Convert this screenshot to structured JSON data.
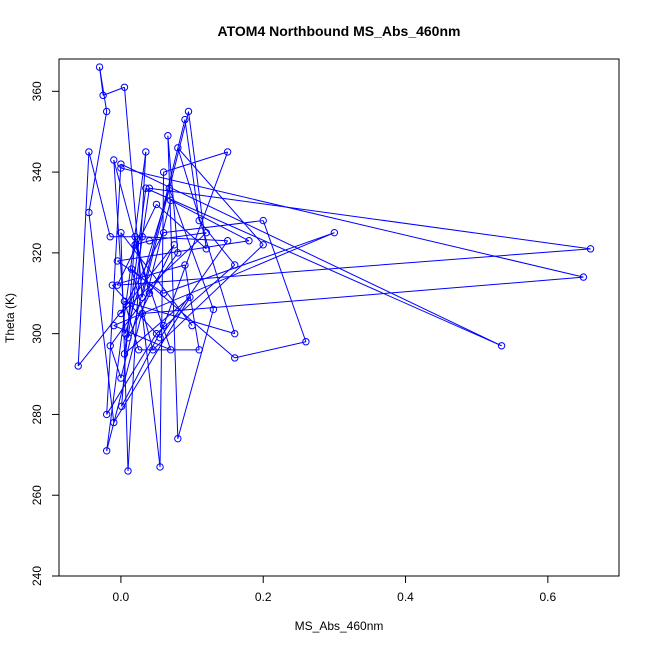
{
  "chart_data": {
    "type": "line",
    "title": "ATOM4 Northbound MS_Abs_460nm",
    "xlabel": "MS_Abs_460nm",
    "ylabel": "Theta (K)",
    "xlim": [
      -0.087,
      0.7
    ],
    "ylim": [
      240,
      368
    ],
    "xticks": [
      0.0,
      0.2,
      0.4,
      0.6
    ],
    "xtick_labels": [
      "0.0",
      "0.2",
      "0.4",
      "0.6"
    ],
    "yticks": [
      240,
      260,
      280,
      300,
      320,
      340,
      360
    ],
    "ytick_labels": [
      "240",
      "260",
      "280",
      "300",
      "320",
      "340",
      "360"
    ],
    "grid": false,
    "legend": "none",
    "series": [
      {
        "color": "#0000ff",
        "marker": "circle-open",
        "line": true,
        "points": [
          [
            0.0,
            341.0
          ],
          [
            0.65,
            314.0
          ],
          [
            0.03,
            305.0
          ],
          [
            0.055,
            267.0
          ],
          [
            0.06,
            340.0
          ],
          [
            0.15,
            345.0
          ],
          [
            0.06,
            302.0
          ],
          [
            0.001,
            282.0
          ],
          [
            0.02,
            324.0
          ],
          [
            0.04,
            310.0
          ],
          [
            -0.01,
            343.0
          ],
          [
            0.006,
            300.0
          ],
          [
            0.068,
            336.0
          ],
          [
            0.13,
            306.0
          ],
          [
            0.08,
            274.0
          ],
          [
            0.066,
            349.0
          ],
          [
            0.08,
            320.0
          ],
          [
            -0.015,
            297.0
          ],
          [
            0.0,
            289.0
          ],
          [
            0.09,
            353.0
          ],
          [
            0.11,
            328.0
          ],
          [
            0.16,
            317.0
          ],
          [
            0.05,
            300.0
          ],
          [
            -0.02,
            280.0
          ],
          [
            0.0,
            342.0
          ],
          [
            0.535,
            297.0
          ],
          [
            0.035,
            336.0
          ],
          [
            0.005,
            295.0
          ],
          [
            0.097,
            309.0
          ],
          [
            -0.01,
            278.0
          ],
          [
            -0.045,
            330.0
          ],
          [
            -0.02,
            355.0
          ],
          [
            -0.03,
            366.0
          ],
          [
            -0.025,
            359.0
          ],
          [
            0.005,
            361.0
          ],
          [
            0.03,
            309.0
          ],
          [
            0.095,
            355.0
          ],
          [
            0.12,
            321.0
          ],
          [
            0.05,
            332.0
          ],
          [
            -0.005,
            312.0
          ],
          [
            0.66,
            321.0
          ],
          [
            0.04,
            336.0
          ],
          [
            0.01,
            299.0
          ],
          [
            0.075,
            322.0
          ],
          [
            -0.06,
            292.0
          ],
          [
            -0.045,
            345.0
          ],
          [
            -0.015,
            324.0
          ],
          [
            0.03,
            324.0
          ],
          [
            0.15,
            323.0
          ],
          [
            0.055,
            299.0
          ],
          [
            -0.012,
            312.0
          ],
          [
            0.09,
            317.0
          ],
          [
            0.11,
            296.0
          ],
          [
            0.025,
            296.0
          ],
          [
            0.005,
            308.0
          ],
          [
            0.16,
            300.0
          ],
          [
            0.08,
            346.0
          ],
          [
            0.2,
            322.0
          ],
          [
            0.045,
            296.0
          ],
          [
            0.015,
            316.0
          ],
          [
            0.16,
            294.0
          ],
          [
            0.26,
            298.0
          ],
          [
            0.2,
            328.0
          ],
          [
            0.06,
            325.0
          ],
          [
            0.0,
            305.0
          ],
          [
            0.12,
            325.0
          ],
          [
            0.04,
            323.0
          ],
          [
            0.02,
            322.0
          ],
          [
            0.07,
            296.0
          ],
          [
            -0.01,
            302.0
          ],
          [
            0.3,
            325.0
          ],
          [
            0.06,
            310.0
          ],
          [
            -0.005,
            318.0
          ],
          [
            0.18,
            323.0
          ],
          [
            0.07,
            333.0
          ],
          [
            -0.02,
            271.0
          ],
          [
            0.035,
            345.0
          ],
          [
            0.01,
            266.0
          ],
          [
            0.0,
            325.0
          ],
          [
            0.1,
            302.0
          ]
        ]
      }
    ]
  }
}
